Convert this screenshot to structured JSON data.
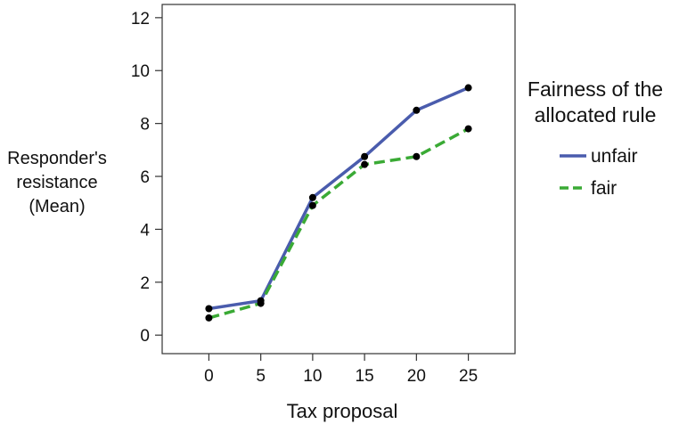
{
  "chart_data": {
    "type": "line",
    "xlabel": "Tax proposal",
    "ylabel_lines": [
      "Responder's",
      "resistance",
      "(Mean)"
    ],
    "x": [
      0,
      5,
      10,
      15,
      20,
      25
    ],
    "x_ticks": [
      0,
      5,
      10,
      15,
      20,
      25
    ],
    "y_ticks": [
      0,
      2,
      4,
      6,
      8,
      10,
      12
    ],
    "ylim": [
      -0.7,
      12.5
    ],
    "xlim": [
      -4.5,
      29.5
    ],
    "grid": false,
    "legend": {
      "title_lines": [
        "Fairness of the",
        "allocated rule"
      ],
      "placement": "right"
    },
    "series": [
      {
        "name": "unfair",
        "values": [
          1.0,
          1.3,
          5.2,
          6.75,
          8.5,
          9.35
        ],
        "color": "#4a5cad",
        "dash": "solid"
      },
      {
        "name": "fair",
        "values": [
          0.65,
          1.2,
          4.9,
          6.45,
          6.75,
          7.8
        ],
        "color": "#3aaa35",
        "dash": "dashed"
      }
    ]
  }
}
